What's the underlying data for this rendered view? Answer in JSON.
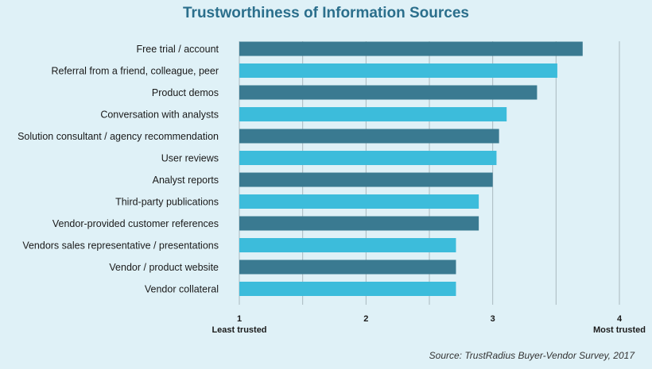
{
  "chart_data": {
    "type": "bar",
    "orientation": "horizontal",
    "title": "Trustworthiness of Information Sources",
    "categories": [
      "Free trial / account",
      "Referral from a friend, colleague, peer",
      "Product demos",
      "Conversation with analysts",
      "Solution consultant / agency recommendation",
      "User reviews",
      "Analyst reports",
      "Third-party publications",
      "Vendor-provided customer references",
      "Vendors sales representative / presentations",
      "Vendor / product website",
      "Vendor collateral"
    ],
    "values": [
      3.71,
      3.51,
      3.35,
      3.11,
      3.05,
      3.03,
      3.0,
      2.89,
      2.89,
      2.71,
      2.71,
      2.71
    ],
    "xlim": [
      1,
      4
    ],
    "xticks": [
      1,
      2,
      3,
      4
    ],
    "xlabel_min": "Least trusted",
    "xlabel_max": "Most trusted",
    "grid": true,
    "colors": [
      "#3a7a91",
      "#3cbcdb"
    ]
  },
  "source": "Source: TrustRadius Buyer-Vendor Survey, 2017"
}
